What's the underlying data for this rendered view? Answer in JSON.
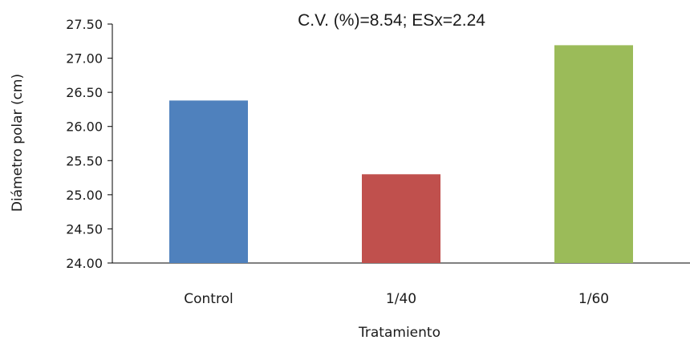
{
  "chart_data": {
    "type": "bar",
    "title": "C.V. (%)=8.54; ESx=2.24",
    "xlabel": "Tratamiento",
    "ylabel": "Diámetro polar (cm)",
    "categories": [
      "Control",
      "1/40",
      "1/60"
    ],
    "values": [
      26.38,
      25.3,
      27.19
    ],
    "colors": [
      "#4f81bd",
      "#c0504d",
      "#9bbb59"
    ],
    "ylim": [
      24.0,
      27.5
    ],
    "yticks": [
      "24.00",
      "24.50",
      "25.00",
      "25.50",
      "26.00",
      "26.50",
      "27.00",
      "27.50"
    ],
    "grid": false,
    "legend": "none"
  }
}
